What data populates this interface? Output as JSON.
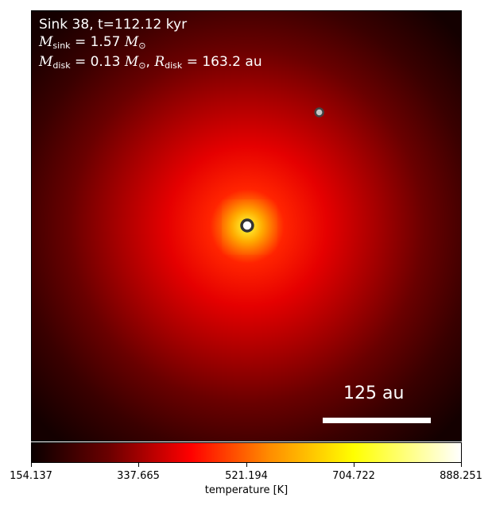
{
  "annotation": {
    "line1": "Sink 38, t=112.12 kyr",
    "msink_value": "= 1.57",
    "mdisk_value": "= 0.13",
    "rdisk_value": "= 163.2",
    "rdisk_unit": "au",
    "mass_unit": "M",
    "sun_symbol": "⊙",
    "m_symbol": "M",
    "r_symbol": "R",
    "sub_sink": "sink",
    "sub_disk": "disk"
  },
  "scalebar": {
    "label": "125 au",
    "length_au": 125
  },
  "colorbar": {
    "label": "temperature [K]",
    "ticks": [
      "154.137",
      "337.665",
      "521.194",
      "704.722",
      "888.251"
    ],
    "min": 154.137,
    "max": 888.251,
    "colormap": "hot"
  },
  "sinks": [
    {
      "name": "primary",
      "fill": "#ffffff",
      "ring": "#333333"
    },
    {
      "name": "secondary",
      "fill": "#c8c8c8",
      "ring": "#444444"
    }
  ],
  "colors": {
    "background": "#ffffff",
    "text_on_map": "#ffffff"
  }
}
